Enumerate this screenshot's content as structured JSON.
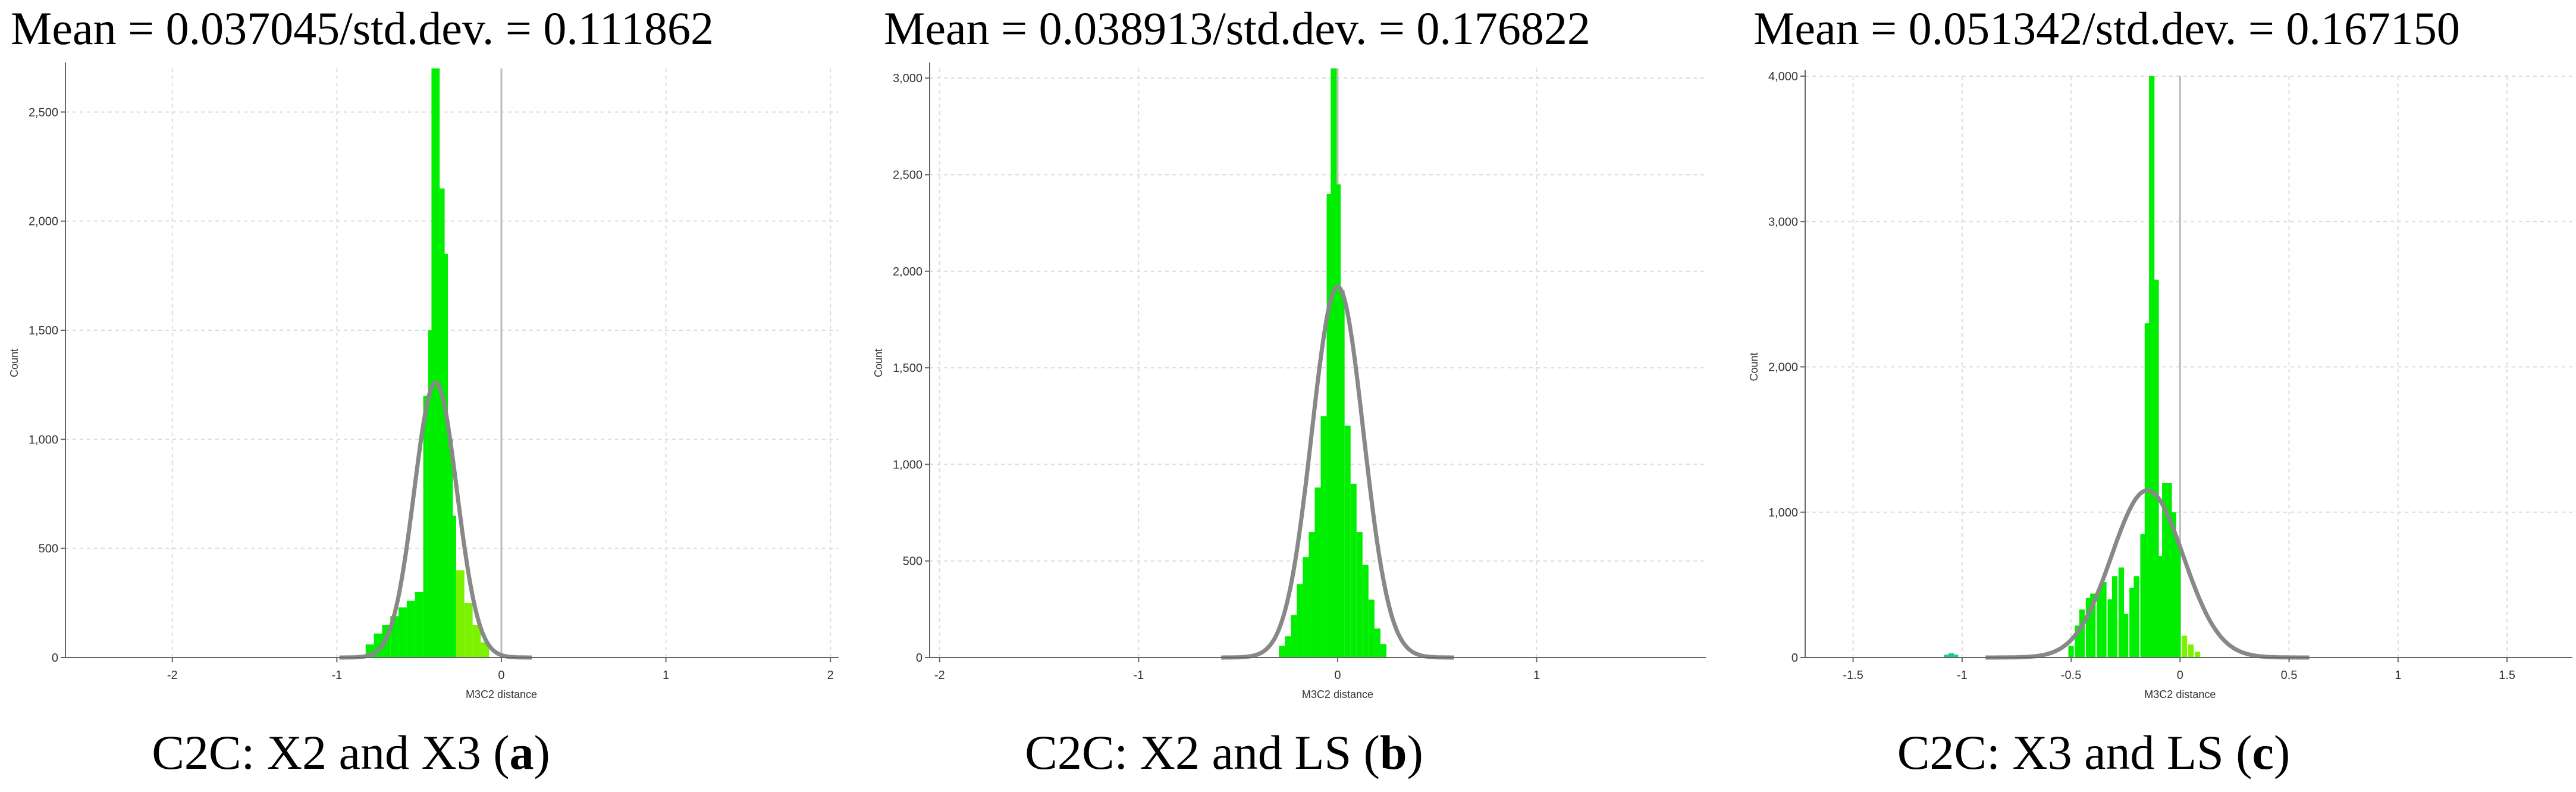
{
  "chart_data": [
    {
      "type": "bar",
      "title": "Mean = 0.037045/std.dev. = 0.111862",
      "caption": {
        "prefix": "C2C: X2 and X3 (",
        "letter": "a",
        "suffix": ")"
      },
      "xlabel": "M3C2 distance",
      "ylabel": "Count",
      "xlim": [
        -2.65,
        2.05
      ],
      "ylim": [
        0,
        2700
      ],
      "xticks": [
        -2,
        -1,
        0,
        1,
        2
      ],
      "xtick_labels": [
        "-2",
        "-1",
        "0",
        "1",
        "2"
      ],
      "yticks": [
        0,
        500,
        1000,
        1500,
        2000,
        2500
      ],
      "ytick_labels": [
        "0",
        "500",
        "1,000",
        "1,500",
        "2,000",
        "2,500"
      ],
      "bin_width": 0.05,
      "bins": [
        {
          "x": -0.8,
          "count": 60
        },
        {
          "x": -0.75,
          "count": 110
        },
        {
          "x": -0.7,
          "count": 150
        },
        {
          "x": -0.65,
          "count": 190
        },
        {
          "x": -0.6,
          "count": 230
        },
        {
          "x": -0.55,
          "count": 260
        },
        {
          "x": -0.5,
          "count": 300
        },
        {
          "x": -0.45,
          "count": 1200
        },
        {
          "x": -0.42,
          "count": 1500
        },
        {
          "x": -0.4,
          "count": 2700
        },
        {
          "x": -0.37,
          "count": 2150
        },
        {
          "x": -0.35,
          "count": 1850
        },
        {
          "x": -0.32,
          "count": 1000
        },
        {
          "x": -0.3,
          "count": 650
        },
        {
          "x": -0.25,
          "count": 400
        },
        {
          "x": -0.2,
          "count": 250
        },
        {
          "x": -0.15,
          "count": 150
        },
        {
          "x": -0.1,
          "count": 70
        }
      ],
      "fit_curve": {
        "mean": -0.4,
        "std": 0.13,
        "peak": 1260
      },
      "grid": true,
      "zero_line": 0
    },
    {
      "type": "bar",
      "title": "Mean = 0.038913/std.dev. = 0.176822",
      "caption": {
        "prefix": "C2C: X2 and LS (",
        "letter": "b",
        "suffix": ")"
      },
      "xlabel": "M3C2 distance",
      "ylabel": "Count",
      "xlim": [
        -2.05,
        1.85
      ],
      "ylim": [
        0,
        3050
      ],
      "xticks": [
        -2,
        -1,
        0,
        1
      ],
      "xtick_labels": [
        "-2",
        "-1",
        "0",
        "1"
      ],
      "yticks": [
        0,
        500,
        1000,
        1500,
        2000,
        2500,
        3000
      ],
      "ytick_labels": [
        "0",
        "500",
        "1,000",
        "1,500",
        "2,000",
        "2,500",
        "3,000"
      ],
      "bin_width": 0.03,
      "bins": [
        {
          "x": -0.28,
          "count": 60
        },
        {
          "x": -0.25,
          "count": 110
        },
        {
          "x": -0.22,
          "count": 220
        },
        {
          "x": -0.19,
          "count": 380
        },
        {
          "x": -0.16,
          "count": 520
        },
        {
          "x": -0.13,
          "count": 650
        },
        {
          "x": -0.1,
          "count": 880
        },
        {
          "x": -0.07,
          "count": 1250
        },
        {
          "x": -0.04,
          "count": 2400
        },
        {
          "x": -0.02,
          "count": 3050
        },
        {
          "x": 0.0,
          "count": 2450
        },
        {
          "x": 0.02,
          "count": 1900
        },
        {
          "x": 0.05,
          "count": 1200
        },
        {
          "x": 0.08,
          "count": 900
        },
        {
          "x": 0.11,
          "count": 650
        },
        {
          "x": 0.14,
          "count": 480
        },
        {
          "x": 0.17,
          "count": 300
        },
        {
          "x": 0.2,
          "count": 150
        },
        {
          "x": 0.23,
          "count": 70
        }
      ],
      "fit_curve": {
        "mean": 0.0,
        "std": 0.13,
        "peak": 1920
      },
      "grid": true,
      "zero_line": 0
    },
    {
      "type": "bar",
      "title": "Mean = 0.051342/std.dev. = 0.167150",
      "caption": {
        "prefix": "C2C: X3 and LS (",
        "letter": "c",
        "suffix": ")"
      },
      "xlabel": "M3C2 distance",
      "ylabel": "Count",
      "xlim": [
        -1.72,
        1.8
      ],
      "ylim": [
        0,
        4000
      ],
      "xticks": [
        -1.5,
        -1,
        -0.5,
        0,
        0.5,
        1,
        1.5
      ],
      "xtick_labels": [
        "-1.5",
        "-1",
        "-0.5",
        "0",
        "0.5",
        "1",
        "1.5"
      ],
      "yticks": [
        0,
        1000,
        2000,
        3000,
        4000
      ],
      "ytick_labels": [
        "0",
        "1,000",
        "2,000",
        "3,000",
        "4,000"
      ],
      "bin_width": 0.025,
      "bins": [
        {
          "x": -1.07,
          "count": 20
        },
        {
          "x": -1.05,
          "count": 30
        },
        {
          "x": -1.03,
          "count": 20
        },
        {
          "x": -0.5,
          "count": 80
        },
        {
          "x": -0.47,
          "count": 220
        },
        {
          "x": -0.45,
          "count": 330
        },
        {
          "x": -0.42,
          "count": 410
        },
        {
          "x": -0.4,
          "count": 440
        },
        {
          "x": -0.37,
          "count": 470
        },
        {
          "x": -0.35,
          "count": 520
        },
        {
          "x": -0.32,
          "count": 400
        },
        {
          "x": -0.3,
          "count": 560
        },
        {
          "x": -0.27,
          "count": 620
        },
        {
          "x": -0.25,
          "count": 300
        },
        {
          "x": -0.22,
          "count": 480
        },
        {
          "x": -0.2,
          "count": 560
        },
        {
          "x": -0.17,
          "count": 850
        },
        {
          "x": -0.15,
          "count": 2300
        },
        {
          "x": -0.13,
          "count": 4000
        },
        {
          "x": -0.11,
          "count": 2600
        },
        {
          "x": -0.09,
          "count": 700
        },
        {
          "x": -0.07,
          "count": 1200
        },
        {
          "x": -0.05,
          "count": 1200
        },
        {
          "x": -0.03,
          "count": 1000
        },
        {
          "x": -0.01,
          "count": 800
        },
        {
          "x": 0.02,
          "count": 150
        },
        {
          "x": 0.05,
          "count": 90
        },
        {
          "x": 0.08,
          "count": 40
        }
      ],
      "fit_curve": {
        "mean": -0.15,
        "std": 0.165,
        "peak": 1150
      },
      "grid": true,
      "zero_line": 0
    }
  ],
  "colors": {
    "bar_main": "#00ee00",
    "bar_light": "#7cf200",
    "bar_teal": "#18c8a0",
    "fit_curve": "#888888",
    "grid": "#dcdcdc",
    "axis": "#666666",
    "zero_line": "#bbbbbb"
  }
}
